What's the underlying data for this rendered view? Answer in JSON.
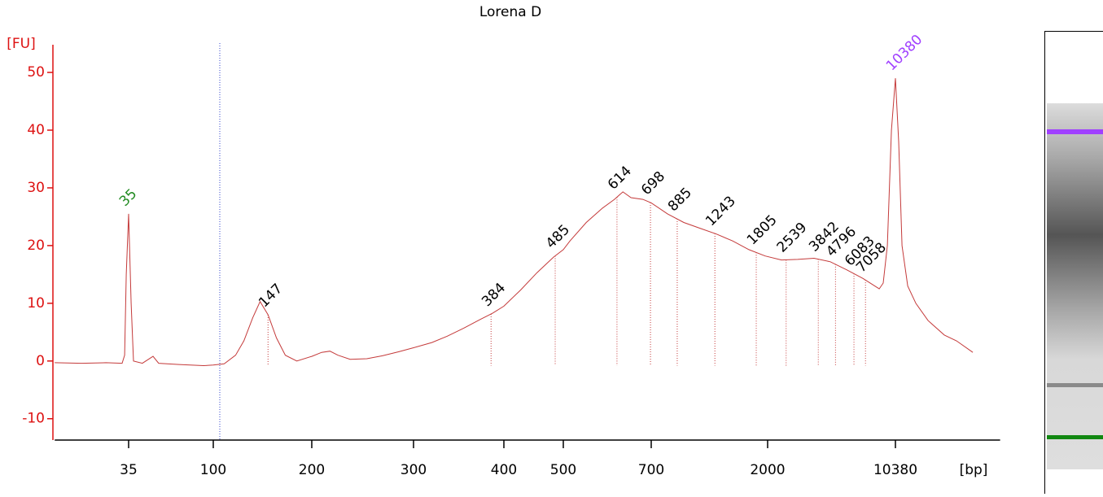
{
  "chart_data": {
    "type": "line",
    "title": "Lorena D",
    "ylabel": "[FU]",
    "xlabel": "[bp]",
    "ylim": [
      -13.7,
      54.8
    ],
    "yticks": [
      -10,
      0,
      10,
      20,
      30,
      40,
      50
    ],
    "xlim": [
      14,
      40000
    ],
    "xticks": [
      35,
      100,
      200,
      300,
      400,
      500,
      700,
      2000,
      10380
    ],
    "x": [
      14,
      19.5,
      26.4,
      32.3,
      33.3,
      34,
      35,
      36.1,
      37.2,
      41.5,
      47.4,
      50.8,
      65.5,
      88.7,
      100,
      108,
      117,
      124,
      132,
      139,
      147,
      156,
      166,
      180,
      200,
      208,
      215,
      222,
      233,
      249,
      265,
      283,
      300,
      318,
      334,
      352,
      371,
      386,
      400,
      426,
      453,
      482,
      500,
      513,
      546,
      581,
      608,
      628,
      648,
      678,
      700,
      811,
      939,
      1087,
      1259,
      1459,
      1689,
      1957,
      2390,
      2948,
      3637,
      4487,
      5536,
      6830,
      8424,
      8873,
      9360,
      9862,
      10380,
      10830,
      11300,
      12160,
      13500,
      15800,
      19500,
      22800,
      28140
    ],
    "series": [
      {
        "color": "#c43a3a",
        "values": [
          -0.3,
          -0.4,
          -0.3,
          -0.4,
          1,
          15,
          25.5,
          10,
          0,
          -0.4,
          0.8,
          -0.4,
          -0.6,
          -0.8,
          -0.7,
          -0.5,
          1,
          3.5,
          7.5,
          10.3,
          8,
          4,
          1,
          0,
          0.8,
          1.5,
          1.7,
          1,
          0.3,
          0.4,
          0.9,
          1.6,
          2.3,
          3.2,
          4.3,
          5.7,
          7.2,
          8.3,
          9.5,
          12.3,
          15.3,
          18,
          19.3,
          20.8,
          24,
          26.5,
          28,
          29.3,
          28.3,
          28,
          27.4,
          25.5,
          24,
          23,
          22,
          20.8,
          19.3,
          18.2,
          17.5,
          17.6,
          17.8,
          17.2,
          15.8,
          14.3,
          12.5,
          13.5,
          20,
          40,
          49,
          38,
          20,
          13,
          10,
          7,
          4.5,
          3.5,
          1.5
        ]
      }
    ],
    "markers": [
      {
        "value": 35,
        "color": "#228b22"
      },
      {
        "value": 147,
        "color": "#000000"
      },
      {
        "value": 384,
        "color": "#000000"
      },
      {
        "value": 485,
        "color": "#000000"
      },
      {
        "value": 614,
        "color": "#000000"
      },
      {
        "value": 698,
        "color": "#000000"
      },
      {
        "value": 885,
        "color": "#000000"
      },
      {
        "value": 1243,
        "color": "#000000"
      },
      {
        "value": 1805,
        "color": "#000000"
      },
      {
        "value": 2539,
        "color": "#000000"
      },
      {
        "value": 3842,
        "color": "#000000"
      },
      {
        "value": 4796,
        "color": "#000000"
      },
      {
        "value": 6083,
        "color": "#000000"
      },
      {
        "value": 7058,
        "color": "#000000"
      },
      {
        "value": 10380,
        "color": "#a040ff"
      }
    ],
    "axis_color": "#dd1111"
  }
}
